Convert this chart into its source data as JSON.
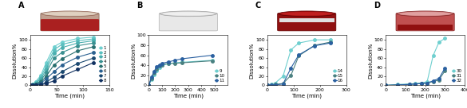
{
  "A": {
    "label": "A",
    "xlim": [
      0,
      150
    ],
    "ylim": [
      0,
      110
    ],
    "xticks": [
      0,
      50,
      100,
      150
    ],
    "yticks": [
      0,
      20,
      40,
      60,
      80,
      100
    ],
    "series": [
      {
        "id": "1",
        "color": "#6ecfcf",
        "marker": "o",
        "x": [
          0,
          5,
          10,
          20,
          30,
          45,
          60,
          90,
          120
        ],
        "y": [
          0,
          3,
          8,
          22,
          50,
          85,
          95,
          103,
          106
        ]
      },
      {
        "id": "2",
        "color": "#5bbfbf",
        "marker": "o",
        "x": [
          0,
          5,
          10,
          20,
          30,
          45,
          60,
          90,
          120
        ],
        "y": [
          0,
          2,
          6,
          18,
          42,
          78,
          90,
          98,
          102
        ]
      },
      {
        "id": "3",
        "color": "#4aafaf",
        "marker": "o",
        "x": [
          0,
          5,
          10,
          20,
          30,
          45,
          60,
          90,
          120
        ],
        "y": [
          0,
          1,
          5,
          14,
          35,
          70,
          83,
          93,
          98
        ]
      },
      {
        "id": "4",
        "color": "#3a9090",
        "marker": "o",
        "x": [
          0,
          5,
          10,
          20,
          30,
          45,
          60,
          90,
          120
        ],
        "y": [
          0,
          1,
          3,
          10,
          28,
          60,
          72,
          87,
          93
        ]
      },
      {
        "id": "5",
        "color": "#2a7070",
        "marker": "o",
        "x": [
          0,
          5,
          10,
          20,
          30,
          45,
          60,
          90,
          120
        ],
        "y": [
          0,
          0,
          2,
          7,
          20,
          45,
          58,
          76,
          85
        ]
      },
      {
        "id": "6",
        "color": "#2a6090",
        "marker": "o",
        "x": [
          0,
          5,
          10,
          20,
          30,
          45,
          60,
          90,
          120
        ],
        "y": [
          0,
          0,
          1,
          5,
          14,
          30,
          45,
          62,
          72
        ]
      },
      {
        "id": "7",
        "color": "#1a4870",
        "marker": "o",
        "x": [
          0,
          5,
          10,
          20,
          30,
          45,
          60,
          90,
          120
        ],
        "y": [
          0,
          0,
          0,
          2,
          7,
          18,
          30,
          48,
          60
        ]
      },
      {
        "id": "8",
        "color": "#103060",
        "marker": "o",
        "x": [
          0,
          5,
          10,
          20,
          30,
          45,
          60,
          90,
          120
        ],
        "y": [
          0,
          0,
          0,
          1,
          4,
          10,
          20,
          35,
          50
        ]
      }
    ],
    "img_colors": [
      "red_pla_pva",
      "#c8b8b0",
      "#8b2020",
      "#c0c0c0"
    ]
  },
  "B": {
    "label": "B",
    "xlim": [
      0,
      600
    ],
    "ylim": [
      0,
      100
    ],
    "xticks": [
      0,
      100,
      200,
      300,
      400,
      500
    ],
    "yticks": [
      0,
      20,
      40,
      60,
      80,
      100
    ],
    "series": [
      {
        "id": "9",
        "color": "#6ecfcf",
        "marker": "o",
        "x": [
          0,
          20,
          40,
          60,
          80,
          100,
          150,
          200,
          250,
          480
        ],
        "y": [
          0,
          12,
          22,
          30,
          36,
          40,
          43,
          45,
          46,
          50
        ]
      },
      {
        "id": "10",
        "color": "#4a8080",
        "marker": "o",
        "x": [
          0,
          20,
          40,
          60,
          80,
          100,
          150,
          200,
          250,
          480
        ],
        "y": [
          0,
          14,
          25,
          33,
          38,
          41,
          44,
          44,
          45,
          49
        ]
      },
      {
        "id": "11",
        "color": "#2a60a0",
        "marker": "o",
        "x": [
          0,
          20,
          40,
          60,
          80,
          100,
          150,
          200,
          250,
          480
        ],
        "y": [
          0,
          16,
          28,
          37,
          41,
          44,
          47,
          50,
          53,
          60
        ]
      }
    ]
  },
  "C": {
    "label": "C",
    "xlim": [
      0,
      300
    ],
    "ylim": [
      0,
      110
    ],
    "xticks": [
      0,
      100,
      200,
      300
    ],
    "yticks": [
      0,
      20,
      40,
      60,
      80,
      100
    ],
    "series": [
      {
        "id": "14",
        "color": "#6ecfcf",
        "marker": "o",
        "x": [
          0,
          15,
          30,
          60,
          90,
          120,
          180,
          240
        ],
        "y": [
          0,
          2,
          5,
          20,
          78,
          93,
          100,
          100
        ]
      },
      {
        "id": "15",
        "color": "#4a8080",
        "marker": "o",
        "x": [
          0,
          15,
          30,
          60,
          90,
          120,
          180,
          240
        ],
        "y": [
          0,
          1,
          2,
          4,
          22,
          65,
          88,
          95
        ]
      },
      {
        "id": "16",
        "color": "#2a60a0",
        "marker": "o",
        "x": [
          0,
          15,
          30,
          60,
          90,
          120,
          180,
          240
        ],
        "y": [
          0,
          0,
          1,
          3,
          38,
          67,
          87,
          93
        ]
      }
    ]
  },
  "D": {
    "label": "D",
    "xlim": [
      0,
      400
    ],
    "ylim": [
      0,
      110
    ],
    "xticks": [
      0,
      100,
      200,
      300,
      400
    ],
    "yticks": [
      0,
      20,
      40,
      60,
      80,
      100
    ],
    "series": [
      {
        "id": "30",
        "color": "#6ecfcf",
        "marker": "o",
        "x": [
          0,
          60,
          120,
          150,
          180,
          210,
          240,
          270,
          300
        ],
        "y": [
          0,
          2,
          3,
          4,
          5,
          8,
          65,
          95,
          103
        ]
      },
      {
        "id": "31",
        "color": "#4a8080",
        "marker": "o",
        "x": [
          0,
          60,
          120,
          150,
          180,
          210,
          240,
          270,
          300
        ],
        "y": [
          0,
          1,
          2,
          3,
          4,
          5,
          8,
          12,
          32
        ]
      },
      {
        "id": "32",
        "color": "#2a60a0",
        "marker": "o",
        "x": [
          0,
          60,
          120,
          150,
          180,
          210,
          240,
          270,
          300
        ],
        "y": [
          0,
          1,
          2,
          3,
          4,
          5,
          10,
          15,
          38
        ]
      }
    ]
  },
  "xlabel": "Time (min)",
  "ylabel": "Dissolution%",
  "markersize": 2.5,
  "linewidth": 0.8,
  "fontsize_label": 5,
  "fontsize_tick": 4.5,
  "fontsize_legend": 4.0,
  "fontsize_panel": 7
}
